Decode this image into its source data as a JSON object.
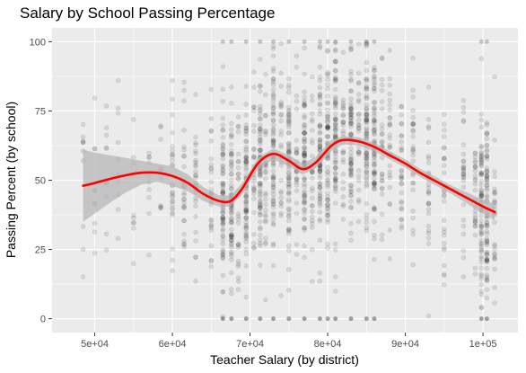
{
  "chart_data": {
    "type": "scatter",
    "title": "Salary by School Passing Percentage",
    "xlabel": "Teacher Salary (by district)",
    "ylabel": "Passing Percent (by school)",
    "xlim": [
      44500,
      104500
    ],
    "ylim": [
      -5,
      105
    ],
    "x_ticks": [
      50000,
      60000,
      70000,
      80000,
      90000,
      100000
    ],
    "x_tick_labels": [
      "5e+04",
      "6e+04",
      "7e+04",
      "8e+04",
      "9e+04",
      "1e+05"
    ],
    "y_ticks": [
      0,
      25,
      50,
      75,
      100
    ],
    "y_tick_labels": [
      "0",
      "25",
      "50",
      "75",
      "100"
    ],
    "grid": true,
    "point_color": "#000000",
    "smooth_color": "#ff0000",
    "band_color": "#b3b3b3",
    "panel_color": "#ebebeb",
    "smooth_line": {
      "x": [
        48500,
        50000,
        52000,
        54000,
        56000,
        58000,
        60000,
        62000,
        64000,
        66000,
        67500,
        69000,
        71000,
        73000,
        75000,
        76800,
        78500,
        80500,
        82000,
        84000,
        86000,
        88000,
        90000,
        92000,
        94000,
        96000,
        98000,
        100000,
        101500
      ],
      "y": [
        48,
        49,
        50.5,
        51.8,
        52.7,
        52.7,
        51.5,
        49,
        45,
        42.5,
        42.5,
        47,
        56,
        59.5,
        57,
        54,
        56.5,
        62.5,
        64.5,
        64,
        62,
        59,
        56,
        52.5,
        49.5,
        46.5,
        43.5,
        40.5,
        38.5
      ]
    },
    "confidence_band": {
      "x": [
        48500,
        50000,
        52000,
        54000,
        56000,
        58000,
        60000,
        62000,
        64000,
        66000,
        67500,
        69000,
        71000,
        73000,
        75000,
        76800,
        78500,
        80500,
        82000,
        84000,
        86000,
        88000,
        90000,
        92000,
        94000,
        96000,
        98000,
        100000,
        101500
      ],
      "upper": [
        61,
        60,
        59,
        58,
        57,
        56,
        55,
        52,
        47.5,
        44.5,
        44.5,
        49,
        58,
        61.5,
        59,
        56,
        58.5,
        64.5,
        66,
        65.5,
        63.5,
        60.5,
        57.5,
        54,
        51,
        48,
        45.5,
        43,
        41.5
      ],
      "lower": [
        35,
        38,
        42,
        45.6,
        48.4,
        49.4,
        48,
        46,
        42.5,
        40.5,
        40.5,
        45,
        54,
        57.5,
        55,
        52,
        54.5,
        60.5,
        63,
        62.5,
        60.5,
        57.5,
        54.5,
        51,
        48,
        45,
        41.5,
        38,
        35.5
      ]
    },
    "district_salaries": [
      48500,
      50000,
      51500,
      53000,
      55000,
      57000,
      58500,
      60000,
      61500,
      63000,
      65000,
      66500,
      67600,
      68500,
      69500,
      70500,
      71300,
      72000,
      73000,
      74000,
      75000,
      76000,
      77000,
      78000,
      79000,
      80000,
      81000,
      82000,
      83000,
      84000,
      85000,
      86000,
      87000,
      88000,
      89500,
      91000,
      93000,
      95000,
      97500,
      99000,
      99800,
      100500,
      101500
    ]
  }
}
